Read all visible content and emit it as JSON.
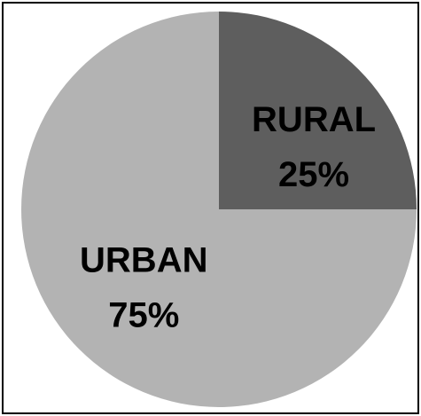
{
  "chart_data": {
    "type": "pie",
    "categories": [
      "RURAL",
      "URBAN"
    ],
    "values": [
      25,
      75
    ],
    "labels": [
      {
        "name": "RURAL",
        "percent": "25%"
      },
      {
        "name": "URBAN",
        "percent": "75%"
      }
    ],
    "colors": [
      "#5e5e5e",
      "#b3b3b3"
    ],
    "legend": "none"
  }
}
